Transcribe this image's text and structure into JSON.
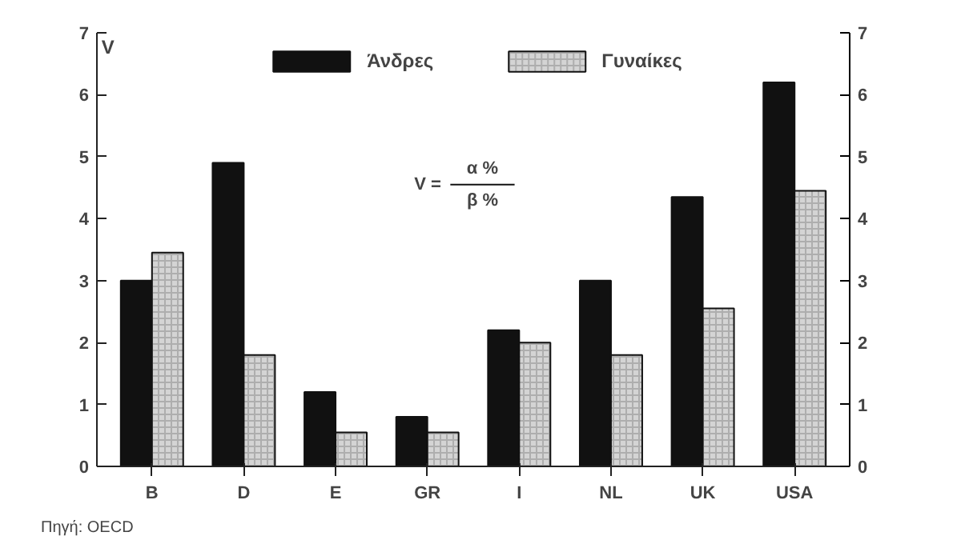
{
  "chart_data": {
    "type": "bar",
    "ylabel": "V",
    "categories": [
      "B",
      "D",
      "E",
      "GR",
      "I",
      "NL",
      "UK",
      "USA"
    ],
    "series": [
      {
        "name": "Άνδρες",
        "color": "#111111",
        "values": [
          3.0,
          4.9,
          1.2,
          0.8,
          2.2,
          3.0,
          4.35,
          6.2
        ]
      },
      {
        "name": "Γυναίκες",
        "color": "#d4d4d4",
        "values": [
          3.45,
          1.8,
          0.55,
          0.55,
          2.0,
          1.8,
          2.55,
          4.45
        ]
      }
    ],
    "ylim": [
      0,
      7
    ],
    "yticks": [
      0,
      1,
      2,
      3,
      4,
      5,
      6,
      7
    ],
    "y2lim": [
      0,
      7
    ],
    "y2ticks": [
      0,
      1,
      2,
      3,
      4,
      5,
      6,
      7
    ],
    "grid": false,
    "legend": "top",
    "annotations": [
      "V =",
      "α %",
      "β %",
      "Πηγή: OECD"
    ]
  }
}
